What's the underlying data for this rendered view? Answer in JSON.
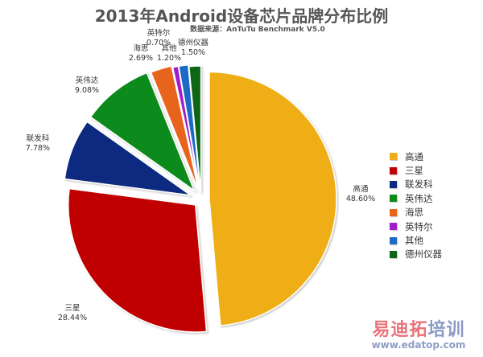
{
  "title": "2013年Android设备芯片品牌分布比例",
  "subtitle": "数据来源：AnTuTu Benchmark V5.0",
  "chart_data": {
    "type": "pie",
    "title": "2013年Android设备芯片品牌分布比例",
    "subtitle": "数据来源：AnTuTu Benchmark V5.0",
    "categories": [
      "高通",
      "三星",
      "联发科",
      "英伟达",
      "海思",
      "英特尔",
      "其他",
      "德州仪器"
    ],
    "values": [
      48.6,
      28.44,
      7.78,
      9.08,
      2.69,
      0.7,
      1.2,
      1.5
    ],
    "value_labels": [
      "48.60%",
      "28.44%",
      "7.78%",
      "9.08%",
      "2.69%",
      "0.70%",
      "1.20%",
      "1.50%"
    ],
    "colors": [
      "#f0ae14",
      "#c00000",
      "#0a2b80",
      "#0e8a1a",
      "#e8641a",
      "#a21ccc",
      "#1e6bc4",
      "#0b6616"
    ],
    "exploded": true,
    "start_angle": "12 o'clock",
    "direction": "clockwise",
    "legend_position": "right"
  },
  "legend": {
    "items": [
      {
        "label": "高通",
        "color": "#f0ae14"
      },
      {
        "label": "三星",
        "color": "#c00000"
      },
      {
        "label": "联发科",
        "color": "#0a2b80"
      },
      {
        "label": "英伟达",
        "color": "#0e8a1a"
      },
      {
        "label": "海思",
        "color": "#e8641a"
      },
      {
        "label": "英特尔",
        "color": "#a21ccc"
      },
      {
        "label": "其他",
        "color": "#1e6bc4"
      },
      {
        "label": "德州仪器",
        "color": "#0b6616"
      }
    ]
  },
  "labels": {
    "qualcomm": {
      "name": "高通",
      "value": "48.60%"
    },
    "samsung": {
      "name": "三星",
      "value": "28.44%"
    },
    "mediatek": {
      "name": "联发科",
      "value": "7.78%"
    },
    "nvidia": {
      "name": "英伟达",
      "value": "9.08%"
    },
    "hisilicon": {
      "name": "海思",
      "value": "2.69%"
    },
    "intel": {
      "name": "英特尔",
      "value": "0.70%"
    },
    "other": {
      "name": "其他",
      "value": "1.20%"
    },
    "ti": {
      "name": "德州仪器",
      "value": "1.50%"
    }
  },
  "watermark": {
    "cn_part1": "易迪拓",
    "cn_part2": "培训",
    "url": "www.edatop.com"
  }
}
